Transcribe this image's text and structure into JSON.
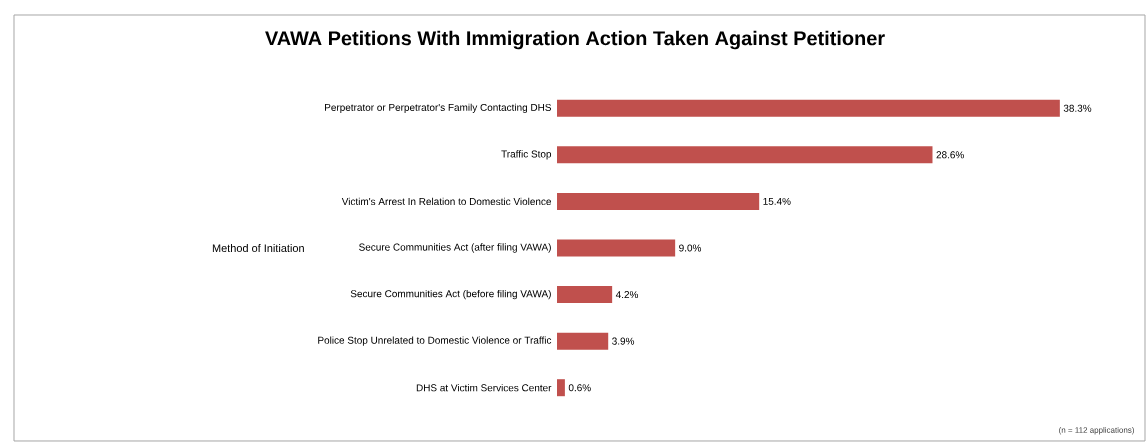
{
  "chart_data": {
    "type": "bar",
    "orientation": "horizontal",
    "title": "VAWA Petitions With Immigration Action Taken Against Petitioner",
    "ylabel": "Method of Initiation",
    "categories": [
      "Perpetrator or Perpetrator's Family Contacting DHS",
      "Traffic Stop",
      "Victim's Arrest In Relation to Domestic Violence",
      "Secure Communities Act (after filing VAWA)",
      "Secure Communities Act (before filing VAWA)",
      "Police Stop Unrelated to Domestic Violence or Traffic",
      "DHS at Victim Services Center"
    ],
    "values": [
      38.3,
      28.6,
      15.4,
      9.0,
      4.2,
      3.9,
      0.6
    ],
    "value_labels": [
      "38.3%",
      "28.6%",
      "15.4%",
      "9.0%",
      "4.2%",
      "3.9%",
      "0.6%"
    ],
    "color": "#c0504d",
    "annotations": [
      "(n = 112 applications)"
    ]
  }
}
